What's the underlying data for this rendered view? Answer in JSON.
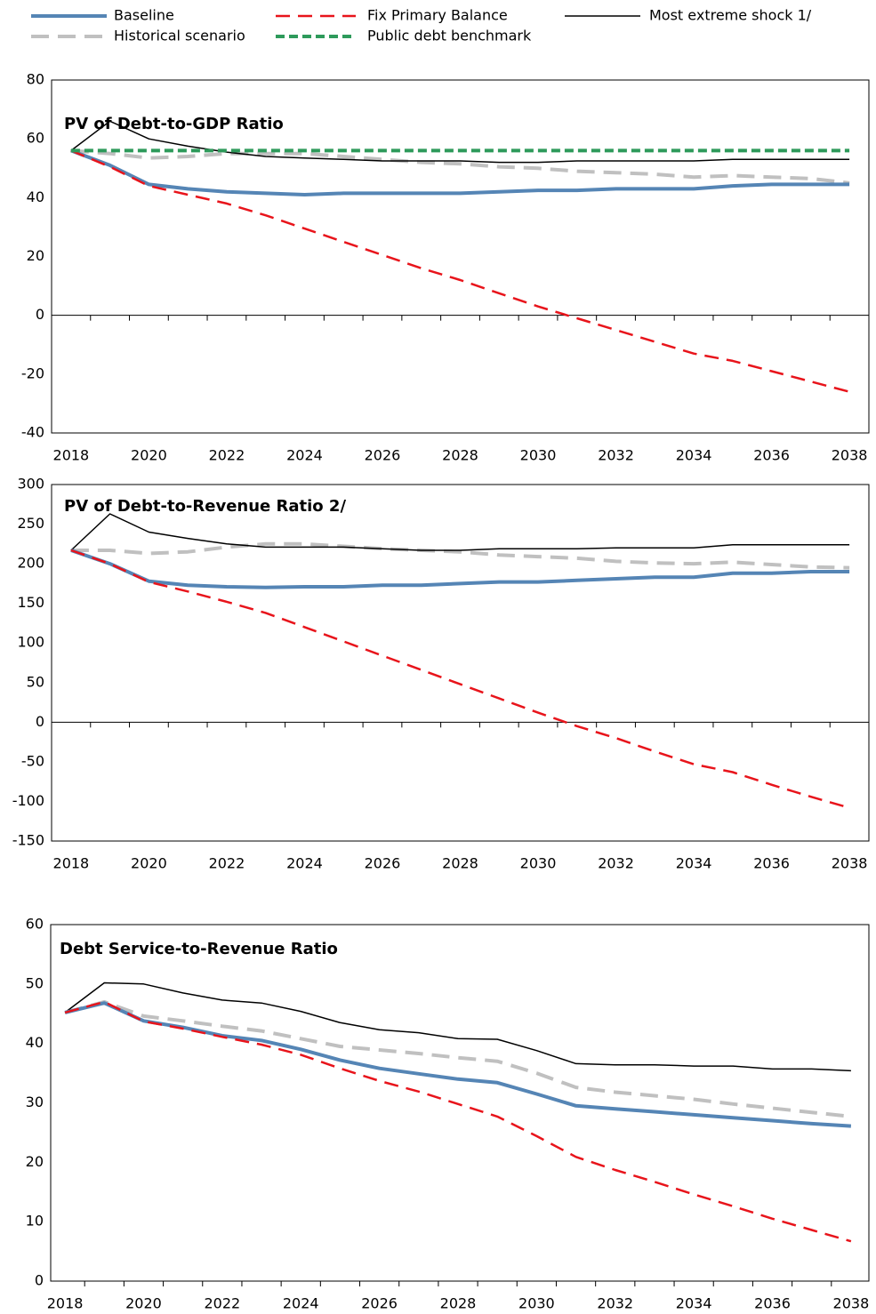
{
  "chart_data": [
    {
      "type": "line",
      "title": "PV of Debt-to-GDP  Ratio",
      "categories": [
        "2018",
        null,
        "2020",
        null,
        "2022",
        null,
        "2024",
        null,
        "2026",
        null,
        "2028",
        null,
        "2030",
        null,
        "2032",
        null,
        "2034",
        null,
        "2036",
        null,
        "2038"
      ],
      "ylim": [
        -40,
        80
      ],
      "yticks": [
        -40,
        -20,
        0,
        20,
        40,
        60,
        80
      ],
      "series": [
        {
          "name": "Baseline",
          "color": "#5585b5",
          "width": 4,
          "dash": null,
          "values": [
            56,
            51,
            44.5,
            43,
            42,
            41.5,
            41,
            41.5,
            41.5,
            41.5,
            41.5,
            42,
            42.5,
            42.5,
            43,
            43,
            43,
            44,
            44.5,
            44.5,
            44.5
          ]
        },
        {
          "name": "Fix Primary Balance",
          "color": "#e8141b",
          "width": 2.5,
          "dash": [
            16,
            9
          ],
          "values": [
            56,
            50.5,
            44,
            41,
            38,
            34,
            29.5,
            25,
            20.5,
            16,
            12,
            7.5,
            3,
            -1,
            -5,
            -9,
            -13,
            -15.5,
            -19,
            -22.5,
            -26
          ]
        },
        {
          "name": "Most extreme shock  1/",
          "color": "#000000",
          "width": 1.5,
          "dash": null,
          "values": [
            56,
            66,
            60,
            57.5,
            55.5,
            54,
            53.5,
            53,
            52.5,
            52.5,
            52.5,
            52,
            52,
            52.5,
            52.5,
            52.5,
            52.5,
            53,
            53,
            53,
            53
          ]
        },
        {
          "name": "Historical scenario",
          "color": "#c0c0c0",
          "width": 4,
          "dash": [
            20,
            10
          ],
          "values": [
            56,
            55,
            53.5,
            54,
            55,
            55,
            55,
            54,
            53,
            52,
            51.5,
            50.5,
            50,
            49,
            48.5,
            48,
            47,
            47.5,
            47,
            46.5,
            45
          ]
        },
        {
          "name": "Public debt benchmark",
          "color": "#2e9a5b",
          "width": 4,
          "dash": [
            10,
            5
          ],
          "values": [
            56,
            56,
            56,
            56,
            56,
            56,
            56,
            56,
            56,
            56,
            56,
            56,
            56,
            56,
            56,
            56,
            56,
            56,
            56,
            56,
            56
          ]
        }
      ]
    },
    {
      "type": "line",
      "title": "PV of Debt-to-Revenue  Ratio 2/",
      "categories": [
        "2018",
        null,
        "2020",
        null,
        "2022",
        null,
        "2024",
        null,
        "2026",
        null,
        "2028",
        null,
        "2030",
        null,
        "2032",
        null,
        "2034",
        null,
        "2036",
        null,
        "2038"
      ],
      "ylim": [
        -150,
        300
      ],
      "yticks": [
        -150,
        -100,
        -50,
        0,
        50,
        100,
        150,
        200,
        250,
        300
      ],
      "series": [
        {
          "color": "#5585b5",
          "width": 4,
          "dash": null,
          "values": [
            217,
            200,
            178,
            173,
            171,
            170,
            171,
            171,
            173,
            173,
            175,
            177,
            177,
            179,
            181,
            183,
            183,
            188,
            188,
            190,
            190
          ]
        },
        {
          "color": "#e8141b",
          "width": 2.5,
          "dash": [
            16,
            9
          ],
          "values": [
            217,
            200,
            177,
            165,
            152,
            138,
            120,
            102,
            84,
            66,
            48,
            30,
            12,
            -5,
            -20,
            -37,
            -53,
            -63,
            -79,
            -94,
            -108
          ]
        },
        {
          "color": "#000000",
          "width": 1.5,
          "dash": null,
          "values": [
            217,
            263,
            240,
            232,
            225,
            221,
            221,
            221,
            219,
            217,
            217,
            219,
            219,
            219,
            220,
            220,
            220,
            224,
            224,
            224,
            224
          ]
        },
        {
          "color": "#c0c0c0",
          "width": 4,
          "dash": [
            20,
            10
          ],
          "values": [
            217,
            217,
            213,
            215,
            221,
            225,
            225,
            222,
            219,
            217,
            215,
            211,
            209,
            207,
            203,
            201,
            200,
            202,
            199,
            196,
            195
          ]
        }
      ]
    },
    {
      "type": "line",
      "title": "Debt Service-to-Revenue  Ratio",
      "categories": [
        "2018",
        null,
        "2020",
        null,
        "2022",
        null,
        "2024",
        null,
        "2026",
        null,
        "2028",
        null,
        "2030",
        null,
        "2032",
        null,
        "2034",
        null,
        "2036",
        null,
        "2038"
      ],
      "ylim": [
        0,
        60
      ],
      "yticks": [
        0,
        10,
        20,
        30,
        40,
        50,
        60
      ],
      "series": [
        {
          "color": "#5585b5",
          "width": 4,
          "dash": null,
          "values": [
            45.2,
            46.8,
            43.8,
            42.7,
            41.3,
            40.5,
            39,
            37.2,
            35.8,
            34.9,
            34,
            33.4,
            31.5,
            29.5,
            29,
            28.5,
            28,
            27.5,
            27,
            26.5,
            26.1
          ]
        },
        {
          "color": "#e8141b",
          "width": 2.5,
          "dash": [
            16,
            9
          ],
          "values": [
            45.2,
            47,
            43.7,
            42.5,
            41.1,
            39.8,
            38.1,
            35.8,
            33.7,
            31.9,
            29.8,
            27.7,
            24.4,
            20.9,
            18.7,
            16.7,
            14.6,
            12.6,
            10.5,
            8.6,
            6.7
          ]
        },
        {
          "color": "#000000",
          "width": 1.5,
          "dash": null,
          "values": [
            45.2,
            50.2,
            50,
            48.5,
            47.3,
            46.8,
            45.4,
            43.5,
            42.3,
            41.8,
            40.8,
            40.7,
            38.8,
            36.6,
            36.4,
            36.4,
            36.2,
            36.2,
            35.7,
            35.7,
            35.4
          ]
        },
        {
          "color": "#c0c0c0",
          "width": 4,
          "dash": [
            20,
            10
          ],
          "values": [
            45.2,
            47,
            44.6,
            43.8,
            42.9,
            42.1,
            40.8,
            39.5,
            38.9,
            38.3,
            37.6,
            37,
            35,
            32.6,
            31.8,
            31.2,
            30.6,
            29.8,
            29.1,
            28.4,
            27.7
          ]
        }
      ]
    }
  ]
}
